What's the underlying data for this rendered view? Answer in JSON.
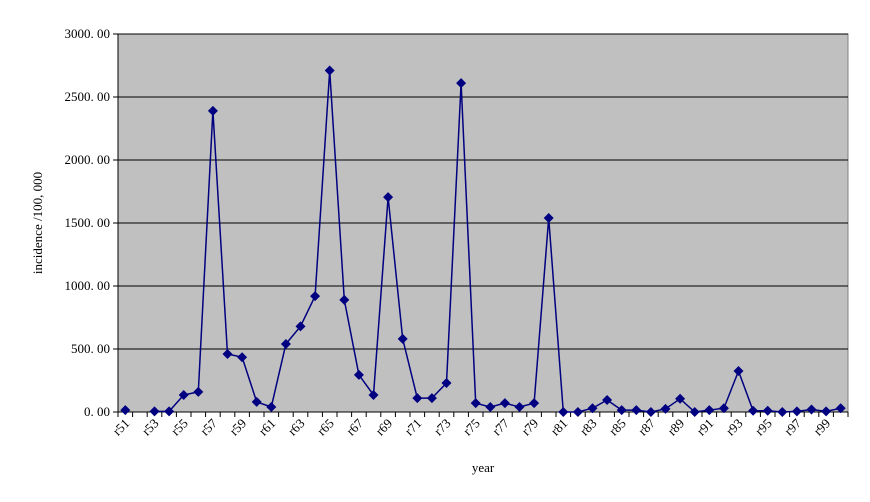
{
  "chart_data": {
    "type": "line",
    "xlabel": "year",
    "ylabel": "incidence /100, 000",
    "categories": [
      "r51",
      null,
      "r53",
      null,
      "r55",
      null,
      "r57",
      null,
      "r59",
      null,
      "r61",
      null,
      "r63",
      null,
      "r65",
      null,
      "r67",
      null,
      "r69",
      null,
      "r71",
      null,
      "r73",
      null,
      "r75",
      null,
      "r77",
      null,
      "r79",
      null,
      "r81",
      null,
      "r83",
      null,
      "r85",
      null,
      "r87",
      null,
      "r89",
      null,
      "r91",
      null,
      "r93",
      null,
      "r95",
      null,
      "r97",
      null,
      "r99",
      null
    ],
    "series": [
      {
        "color": "#000080",
        "values": [
          15,
          null,
          5,
          5,
          135,
          160,
          2390,
          460,
          435,
          80,
          40,
          540,
          680,
          920,
          2710,
          890,
          295,
          135,
          1705,
          580,
          110,
          110,
          230,
          2610,
          70,
          40,
          70,
          40,
          70,
          1540,
          0,
          0,
          30,
          95,
          15,
          15,
          0,
          25,
          105,
          0,
          15,
          30,
          325,
          10,
          10,
          0,
          5,
          20,
          5,
          30
        ]
      }
    ],
    "ylim": [
      0,
      3000
    ],
    "yticks": [
      {
        "value": 0,
        "label": "0. 00"
      },
      {
        "value": 500,
        "label": "500. 00"
      },
      {
        "value": 1000,
        "label": "1000. 00"
      },
      {
        "value": 1500,
        "label": "1500. 00"
      },
      {
        "value": 2000,
        "label": "2000. 00"
      },
      {
        "value": 2500,
        "label": "2500. 00"
      },
      {
        "value": 3000,
        "label": "3000. 00"
      }
    ],
    "grid": true,
    "background": "#c0c0c0"
  }
}
